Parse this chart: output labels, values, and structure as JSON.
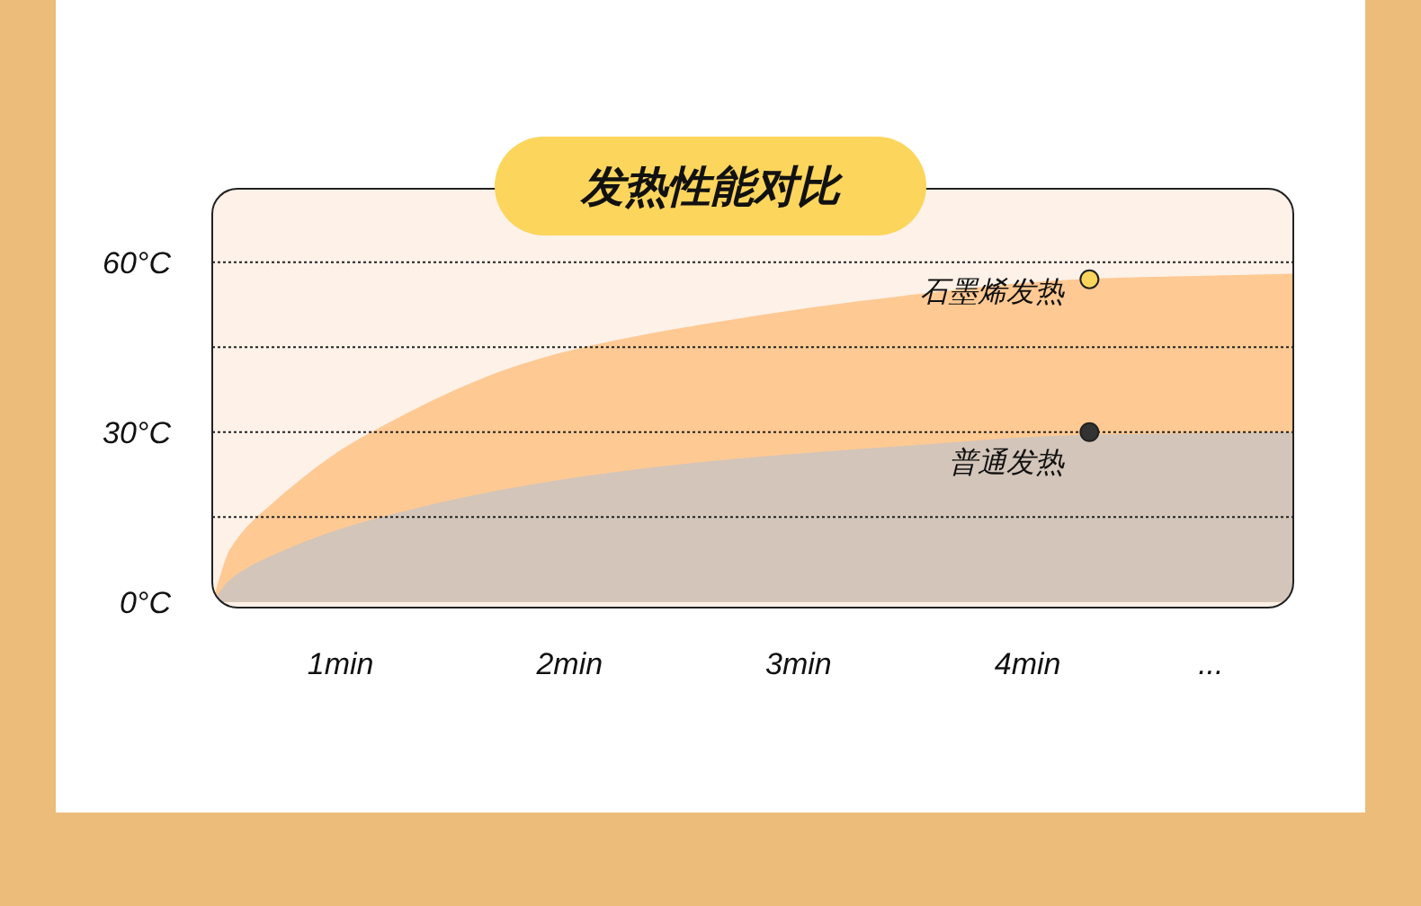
{
  "chart_data": {
    "type": "area",
    "title": "发热性能对比",
    "x": [
      0.44,
      0.52,
      0.69,
      1.09,
      1.87,
      2.65,
      3.44,
      4.22,
      5.16
    ],
    "series": [
      {
        "color": "#ffc993",
        "values": [
          0,
          9.5,
          17,
          29,
          43,
          49.5,
          54,
          57,
          58
        ]
      },
      {
        "color": "#d3c5b9",
        "values": [
          0,
          4,
          8,
          14,
          21,
          25,
          27.5,
          29.5,
          30
        ]
      }
    ],
    "xlim": [
      0.44,
      5.16
    ],
    "xticks": [
      {
        "value": 1,
        "label": "1min"
      },
      {
        "value": 2,
        "label": "2min"
      },
      {
        "value": 3,
        "label": "3min"
      },
      {
        "value": 4,
        "label": "4min"
      },
      {
        "value": 4.8,
        "label": "..."
      }
    ],
    "ylim": [
      -1,
      73
    ],
    "yticks": [
      {
        "value": 0,
        "label": "0°C"
      },
      {
        "value": 15,
        "label": null
      },
      {
        "value": 30,
        "label": "30°C"
      },
      {
        "value": 45,
        "label": null
      },
      {
        "value": 60,
        "label": "60°C"
      }
    ],
    "grid": "y",
    "annotations": [
      {
        "text": "石墨烯发热",
        "x": 4.27,
        "y": 57
      },
      {
        "text": "普通发热",
        "x": 4.27,
        "y": 30
      }
    ]
  }
}
